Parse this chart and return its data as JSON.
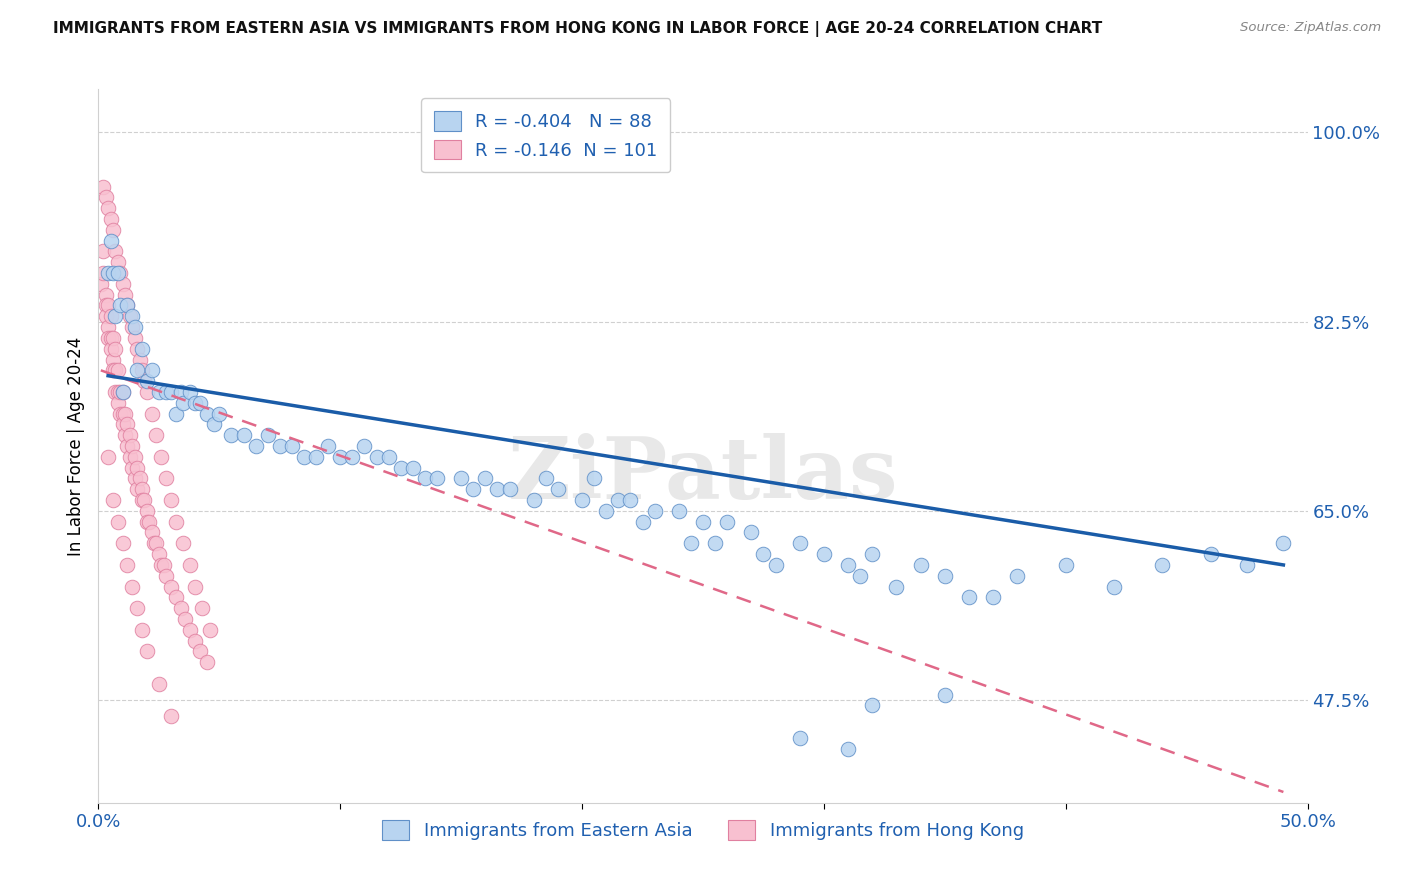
{
  "title": "IMMIGRANTS FROM EASTERN ASIA VS IMMIGRANTS FROM HONG KONG IN LABOR FORCE | AGE 20-24 CORRELATION CHART",
  "source": "Source: ZipAtlas.com",
  "ylabel": "In Labor Force | Age 20-24",
  "xlim": [
    0.0,
    0.5
  ],
  "ylim": [
    0.38,
    1.04
  ],
  "blue_R": "-0.404",
  "blue_N": "88",
  "pink_R": "-0.146",
  "pink_N": "101",
  "legend_label_blue": "Immigrants from Eastern Asia",
  "legend_label_pink": "Immigrants from Hong Kong",
  "blue_face_color": "#b8d4f0",
  "pink_face_color": "#f8c0d0",
  "blue_edge_color": "#6090c8",
  "pink_edge_color": "#e080a0",
  "blue_line_color": "#1a5ca8",
  "pink_line_color": "#e06888",
  "legend_text_color": "#2060b0",
  "watermark": "ZiPatlas",
  "background_color": "#ffffff",
  "grid_color": "#d0d0d0",
  "blue_scatter_x": [
    0.004,
    0.005,
    0.006,
    0.007,
    0.008,
    0.009,
    0.01,
    0.012,
    0.014,
    0.015,
    0.016,
    0.018,
    0.02,
    0.022,
    0.025,
    0.028,
    0.03,
    0.032,
    0.034,
    0.035,
    0.038,
    0.04,
    0.042,
    0.045,
    0.048,
    0.05,
    0.055,
    0.06,
    0.065,
    0.07,
    0.075,
    0.08,
    0.085,
    0.09,
    0.095,
    0.1,
    0.105,
    0.11,
    0.115,
    0.12,
    0.125,
    0.13,
    0.135,
    0.14,
    0.15,
    0.155,
    0.16,
    0.165,
    0.17,
    0.18,
    0.185,
    0.19,
    0.2,
    0.205,
    0.21,
    0.215,
    0.22,
    0.225,
    0.23,
    0.24,
    0.245,
    0.25,
    0.255,
    0.26,
    0.27,
    0.275,
    0.28,
    0.29,
    0.3,
    0.31,
    0.315,
    0.32,
    0.33,
    0.34,
    0.35,
    0.36,
    0.37,
    0.38,
    0.4,
    0.42,
    0.44,
    0.46,
    0.475,
    0.49,
    0.29,
    0.31,
    0.32,
    0.35
  ],
  "blue_scatter_y": [
    0.87,
    0.9,
    0.87,
    0.83,
    0.87,
    0.84,
    0.76,
    0.84,
    0.83,
    0.82,
    0.78,
    0.8,
    0.77,
    0.78,
    0.76,
    0.76,
    0.76,
    0.74,
    0.76,
    0.75,
    0.76,
    0.75,
    0.75,
    0.74,
    0.73,
    0.74,
    0.72,
    0.72,
    0.71,
    0.72,
    0.71,
    0.71,
    0.7,
    0.7,
    0.71,
    0.7,
    0.7,
    0.71,
    0.7,
    0.7,
    0.69,
    0.69,
    0.68,
    0.68,
    0.68,
    0.67,
    0.68,
    0.67,
    0.67,
    0.66,
    0.68,
    0.67,
    0.66,
    0.68,
    0.65,
    0.66,
    0.66,
    0.64,
    0.65,
    0.65,
    0.62,
    0.64,
    0.62,
    0.64,
    0.63,
    0.61,
    0.6,
    0.62,
    0.61,
    0.6,
    0.59,
    0.61,
    0.58,
    0.6,
    0.59,
    0.57,
    0.57,
    0.59,
    0.6,
    0.58,
    0.6,
    0.61,
    0.6,
    0.62,
    0.44,
    0.43,
    0.47,
    0.48
  ],
  "pink_scatter_x": [
    0.001,
    0.002,
    0.002,
    0.003,
    0.003,
    0.003,
    0.004,
    0.004,
    0.004,
    0.005,
    0.005,
    0.005,
    0.006,
    0.006,
    0.006,
    0.007,
    0.007,
    0.007,
    0.008,
    0.008,
    0.008,
    0.009,
    0.009,
    0.01,
    0.01,
    0.01,
    0.011,
    0.011,
    0.012,
    0.012,
    0.013,
    0.013,
    0.014,
    0.014,
    0.015,
    0.015,
    0.016,
    0.016,
    0.017,
    0.018,
    0.018,
    0.019,
    0.02,
    0.02,
    0.021,
    0.022,
    0.023,
    0.024,
    0.025,
    0.026,
    0.027,
    0.028,
    0.03,
    0.032,
    0.034,
    0.036,
    0.038,
    0.04,
    0.042,
    0.045,
    0.002,
    0.003,
    0.004,
    0.005,
    0.006,
    0.007,
    0.008,
    0.009,
    0.01,
    0.011,
    0.012,
    0.013,
    0.014,
    0.015,
    0.016,
    0.017,
    0.018,
    0.019,
    0.02,
    0.022,
    0.024,
    0.026,
    0.028,
    0.03,
    0.032,
    0.035,
    0.038,
    0.04,
    0.043,
    0.046,
    0.004,
    0.006,
    0.008,
    0.01,
    0.012,
    0.014,
    0.016,
    0.018,
    0.02,
    0.025,
    0.03
  ],
  "pink_scatter_y": [
    0.86,
    0.87,
    0.89,
    0.85,
    0.84,
    0.83,
    0.84,
    0.82,
    0.81,
    0.83,
    0.81,
    0.8,
    0.81,
    0.79,
    0.78,
    0.8,
    0.78,
    0.76,
    0.78,
    0.76,
    0.75,
    0.76,
    0.74,
    0.76,
    0.74,
    0.73,
    0.74,
    0.72,
    0.73,
    0.71,
    0.72,
    0.7,
    0.71,
    0.69,
    0.7,
    0.68,
    0.69,
    0.67,
    0.68,
    0.67,
    0.66,
    0.66,
    0.65,
    0.64,
    0.64,
    0.63,
    0.62,
    0.62,
    0.61,
    0.6,
    0.6,
    0.59,
    0.58,
    0.57,
    0.56,
    0.55,
    0.54,
    0.53,
    0.52,
    0.51,
    0.95,
    0.94,
    0.93,
    0.92,
    0.91,
    0.89,
    0.88,
    0.87,
    0.86,
    0.85,
    0.84,
    0.83,
    0.82,
    0.81,
    0.8,
    0.79,
    0.78,
    0.77,
    0.76,
    0.74,
    0.72,
    0.7,
    0.68,
    0.66,
    0.64,
    0.62,
    0.6,
    0.58,
    0.56,
    0.54,
    0.7,
    0.66,
    0.64,
    0.62,
    0.6,
    0.58,
    0.56,
    0.54,
    0.52,
    0.49,
    0.46
  ],
  "blue_regline_x": [
    0.004,
    0.49
  ],
  "blue_regline_y": [
    0.775,
    0.6
  ],
  "pink_regline_x": [
    0.001,
    0.49
  ],
  "pink_regline_y": [
    0.78,
    0.39
  ]
}
